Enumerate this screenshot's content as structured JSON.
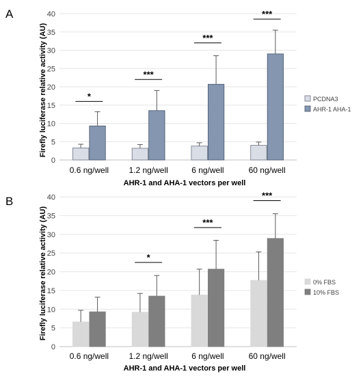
{
  "chart_data": [
    {
      "type": "bar",
      "panel_label": "A",
      "categories": [
        "0.6 ng/well",
        "1.2 ng/well",
        "6 ng/well",
        "60 ng/well"
      ],
      "series": [
        {
          "name": "PCDNA3",
          "values": [
            3.3,
            3.2,
            3.8,
            4.0
          ],
          "errors": [
            1.0,
            1.0,
            0.9,
            0.9
          ],
          "color": "#d9dde6",
          "stroke": "#6b7280"
        },
        {
          "name": "AHR-1 AHA-1",
          "values": [
            9.3,
            13.5,
            20.7,
            29.0
          ],
          "errors": [
            3.9,
            5.5,
            7.8,
            6.5
          ],
          "color": "#8496b0",
          "stroke": "#46546a"
        }
      ],
      "significance": [
        "*",
        "***",
        "***",
        "***"
      ],
      "significance_y": [
        16,
        22,
        32,
        38.5
      ],
      "xlabel": "AHR-1 and AHA-1 vectors per well",
      "ylabel": "Firefly luciferase relative activity (AU)",
      "ylim": [
        0,
        40
      ],
      "yticks": [
        0,
        5,
        10,
        15,
        20,
        25,
        30,
        35,
        40
      ],
      "grid": true,
      "legend": "right"
    },
    {
      "type": "bar",
      "panel_label": "B",
      "categories": [
        "0.6 ng/well",
        "1.2 ng/well",
        "6 ng/well",
        "60 ng/well"
      ],
      "series": [
        {
          "name": "0% FBS",
          "values": [
            6.6,
            9.2,
            13.8,
            17.7
          ],
          "errors": [
            3.1,
            5.0,
            6.9,
            7.6
          ],
          "color": "#d9d9d9",
          "stroke": "#d9d9d9"
        },
        {
          "name": "10% FBS",
          "values": [
            9.3,
            13.5,
            20.7,
            28.9
          ],
          "errors": [
            3.9,
            5.5,
            7.7,
            6.6
          ],
          "color": "#7f7f7f",
          "stroke": "#7f7f7f"
        }
      ],
      "significance": [
        "",
        "*",
        "***",
        "***"
      ],
      "significance_y": [
        0,
        22.5,
        31.8,
        39
      ],
      "xlabel": "AHR-1 and AHA-1 vectors per well",
      "ylabel": "Firefly luciferase relative activity (AU)",
      "ylim": [
        0,
        40
      ],
      "yticks": [
        0,
        5,
        10,
        15,
        20,
        25,
        30,
        35,
        40
      ],
      "grid": true,
      "legend": "right"
    }
  ]
}
